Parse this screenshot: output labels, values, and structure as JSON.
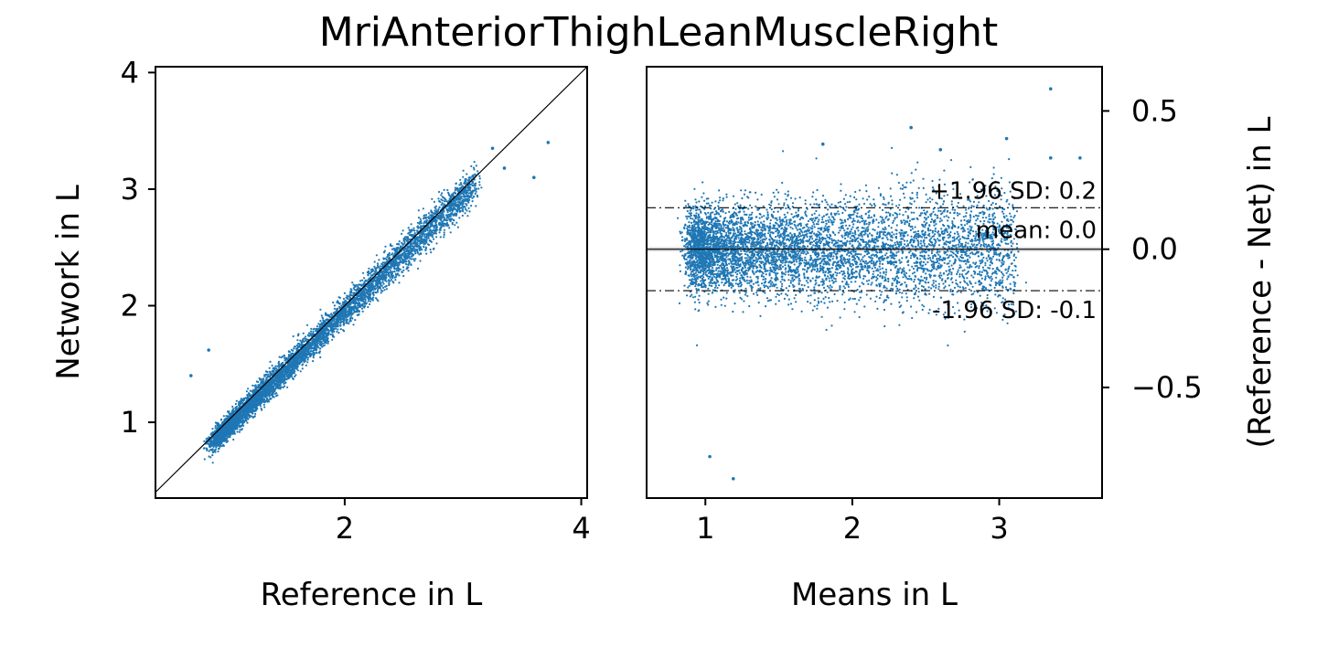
{
  "title": "MriAnteriorThighLeanMuscleRight",
  "colors": {
    "points": "#1f77b4",
    "lines": "#000000",
    "mean_band": "#dddddd"
  },
  "chart_data": [
    {
      "type": "scatter",
      "xlabel": "Reference in L",
      "ylabel": "Network in L",
      "xlim": [
        0.4,
        4.05
      ],
      "ylim": [
        0.35,
        4.05
      ],
      "xticks": [
        2,
        4
      ],
      "xtick_labels": [
        "2",
        "4"
      ],
      "yticks": [
        1,
        2,
        3,
        4
      ],
      "ytick_labels": [
        "1",
        "2",
        "3",
        "4"
      ],
      "identity_line": true,
      "grid": false,
      "cloud": {
        "x_range": [
          0.8,
          3.1
        ],
        "center_slope": 1.0,
        "center_offset": -0.05,
        "spread_sd": 0.05,
        "n_points": 6000
      },
      "outliers": [
        {
          "x": 0.7,
          "y": 1.4
        },
        {
          "x": 0.85,
          "y": 1.62
        },
        {
          "x": 3.6,
          "y": 3.1
        },
        {
          "x": 3.35,
          "y": 3.18
        },
        {
          "x": 3.72,
          "y": 3.4
        },
        {
          "x": 3.25,
          "y": 3.35
        }
      ]
    },
    {
      "type": "scatter",
      "xlabel": "Means in L",
      "ylabel": "(Reference - Net) in L",
      "xlim": [
        0.6,
        3.7
      ],
      "ylim": [
        -0.9,
        0.66
      ],
      "xticks": [
        1,
        2,
        3
      ],
      "xtick_labels": [
        "1",
        "2",
        "3"
      ],
      "yticks": [
        0.5,
        0.0,
        -0.5
      ],
      "ytick_labels": [
        "0.5",
        "0.0",
        "−0.5"
      ],
      "y_axis_side": "right",
      "grid": false,
      "mean": 0.0,
      "upper_loa": 0.15,
      "lower_loa": -0.15,
      "labels": {
        "upper": "+1.96 SD: 0.2",
        "mean": "mean: 0.0",
        "lower": "-1.96 SD: -0.1"
      },
      "cloud": {
        "x_range": [
          0.8,
          3.1
        ],
        "center": 0.0,
        "spread_sd": 0.07,
        "n_points": 6000
      },
      "outliers": [
        {
          "x": 3.35,
          "y": 0.58
        },
        {
          "x": 2.4,
          "y": 0.44
        },
        {
          "x": 3.05,
          "y": 0.4
        },
        {
          "x": 1.8,
          "y": 0.38
        },
        {
          "x": 2.6,
          "y": 0.36
        },
        {
          "x": 3.55,
          "y": 0.33
        },
        {
          "x": 3.35,
          "y": 0.33
        },
        {
          "x": 1.03,
          "y": -0.75
        },
        {
          "x": 1.19,
          "y": -0.83
        }
      ]
    }
  ]
}
